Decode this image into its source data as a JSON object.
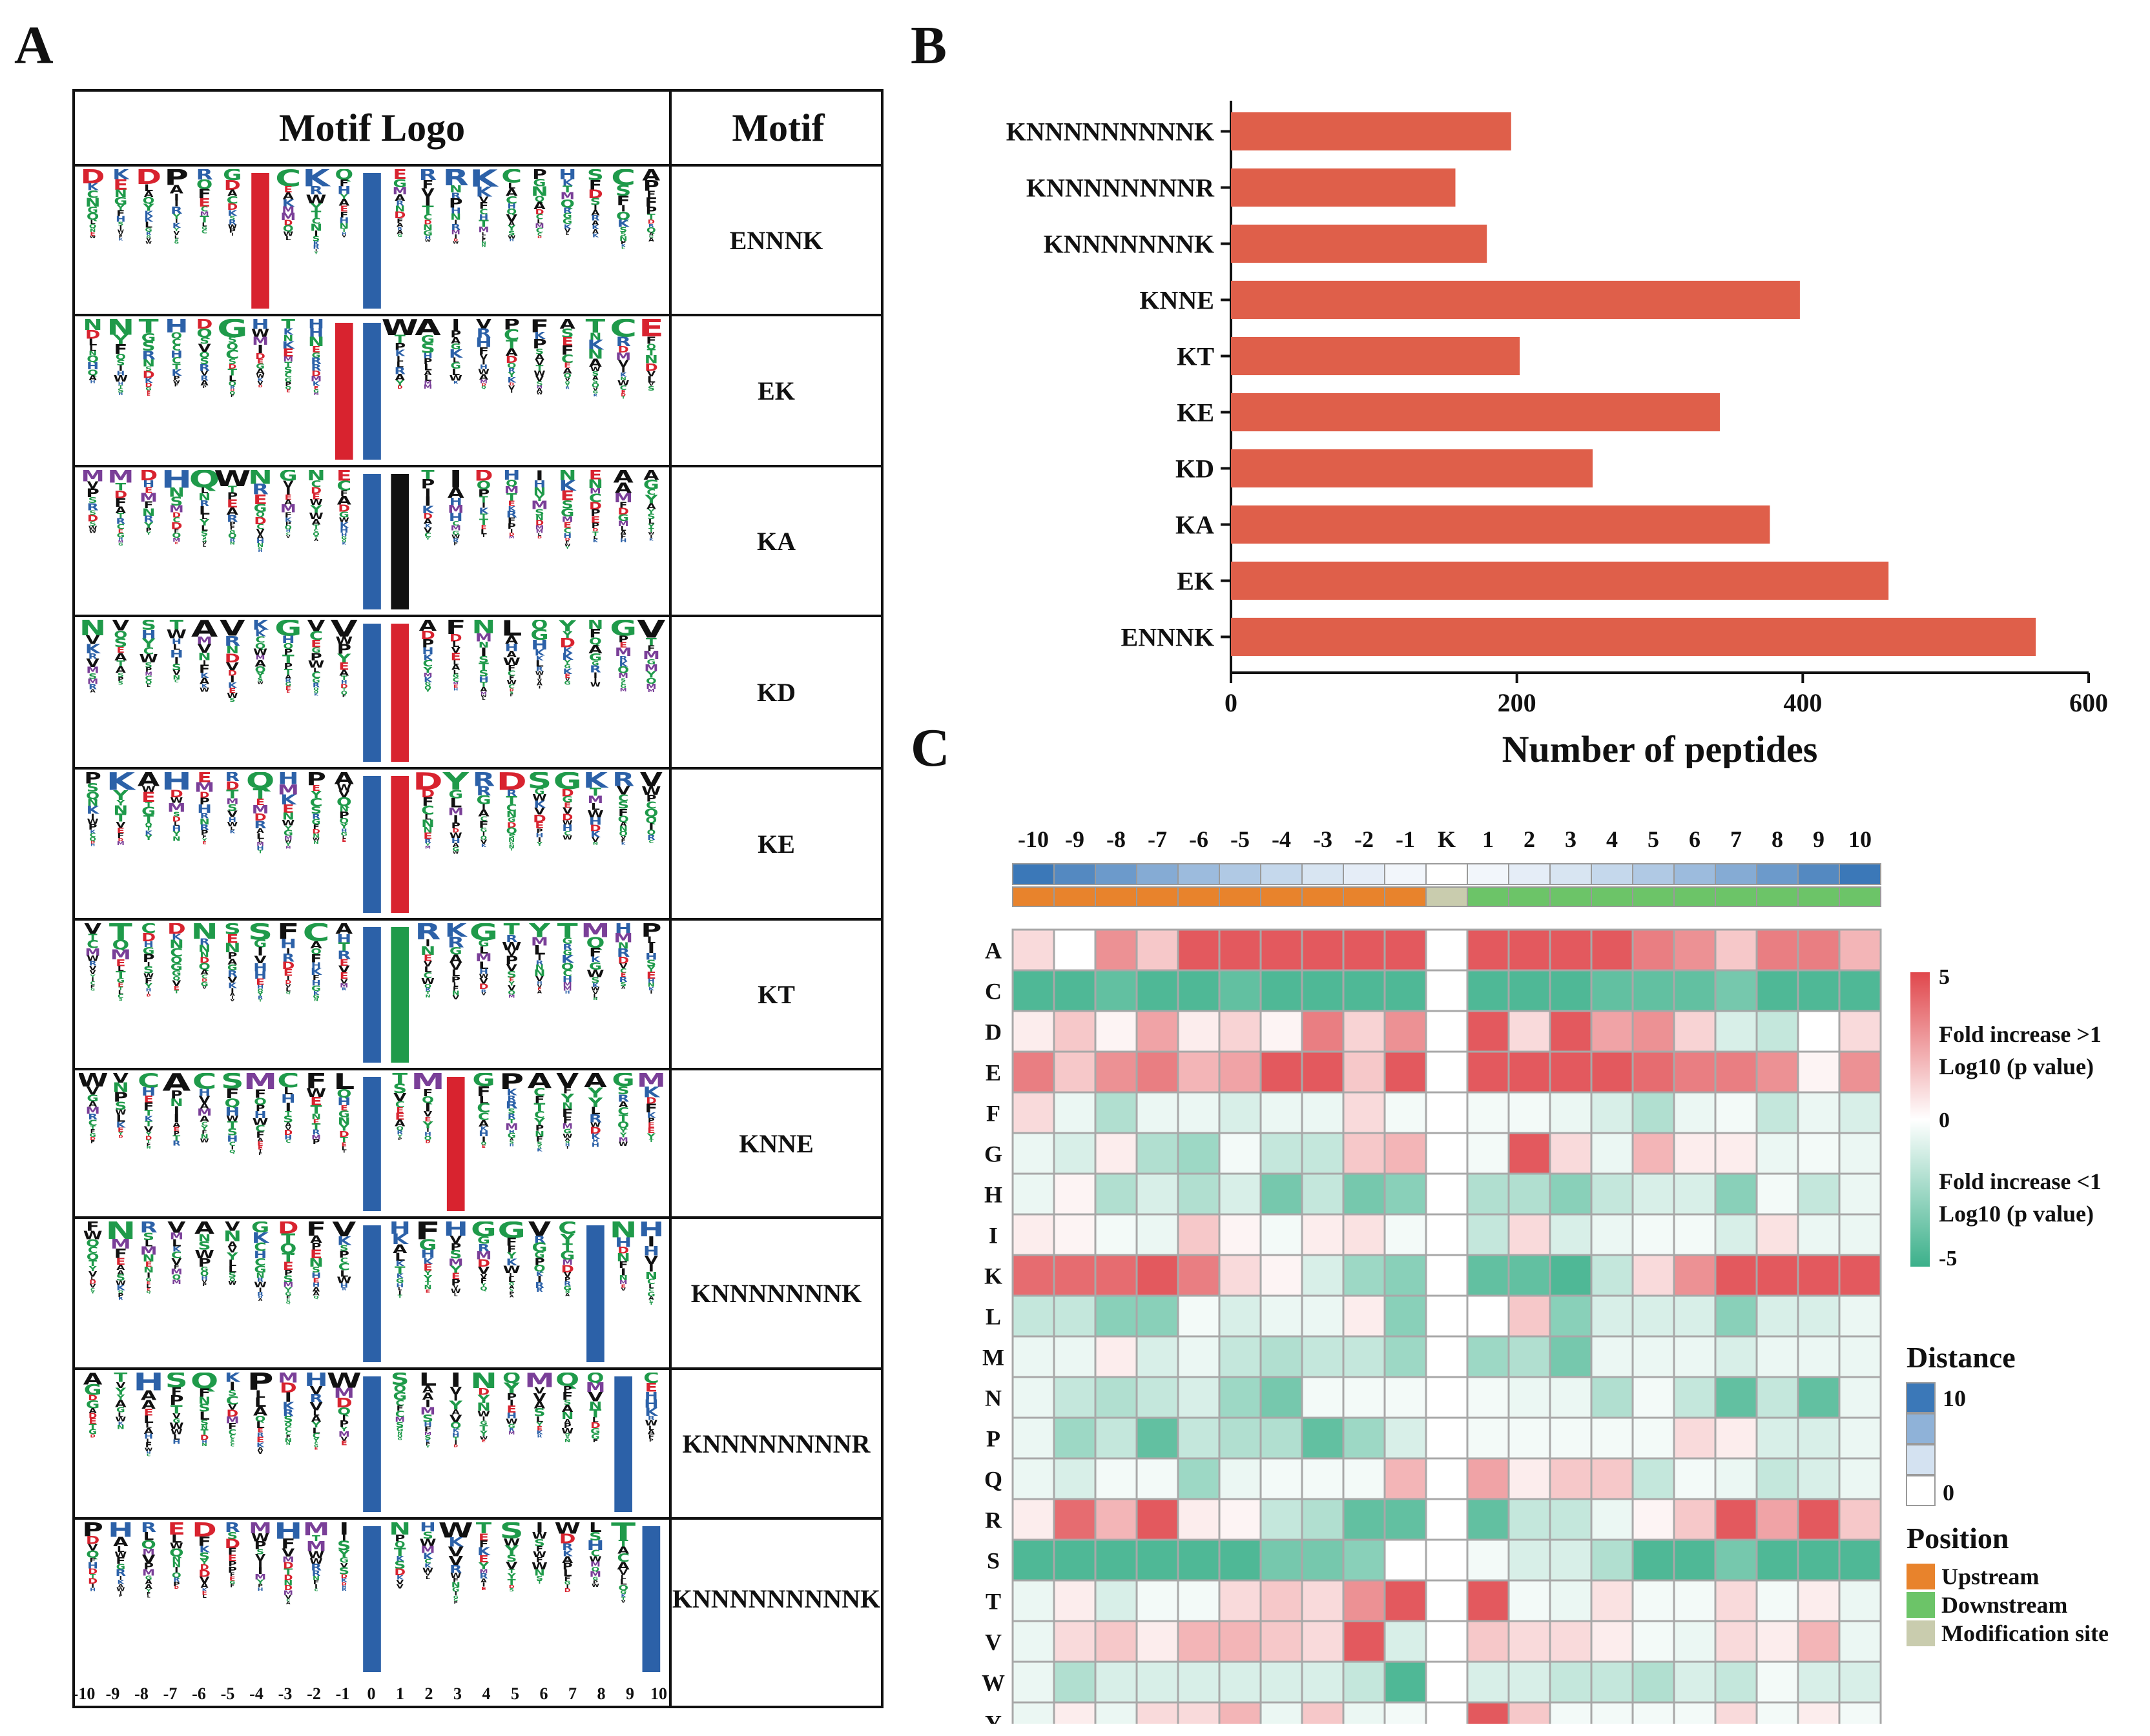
{
  "panels": {
    "a": "A",
    "b": "B",
    "c": "C"
  },
  "panel_a": {
    "logo_header": "Motif Logo",
    "motif_header": "Motif",
    "motifs": [
      {
        "motif": "ENNNK",
        "pattern": "E...K",
        "center_letters": [
          {
            "pos": 6,
            "letter": "E",
            "color": "#d8232f"
          },
          {
            "pos": 10,
            "letter": "K",
            "color": "#2c61a8"
          }
        ]
      },
      {
        "motif": "EK",
        "pattern": "EK",
        "center_letters": [
          {
            "pos": 9,
            "letter": "E",
            "color": "#d8232f"
          },
          {
            "pos": 10,
            "letter": "K",
            "color": "#2c61a8"
          }
        ]
      },
      {
        "motif": "KA",
        "pattern": "KA",
        "center_letters": [
          {
            "pos": 10,
            "letter": "K",
            "color": "#2c61a8"
          },
          {
            "pos": 11,
            "letter": "A",
            "color": "#111111"
          }
        ]
      },
      {
        "motif": "KD",
        "pattern": "KD",
        "center_letters": [
          {
            "pos": 10,
            "letter": "K",
            "color": "#2c61a8"
          },
          {
            "pos": 11,
            "letter": "D",
            "color": "#d8232f"
          }
        ]
      },
      {
        "motif": "KE",
        "pattern": "KE",
        "center_letters": [
          {
            "pos": 10,
            "letter": "K",
            "color": "#2c61a8"
          },
          {
            "pos": 11,
            "letter": "E",
            "color": "#d8232f"
          }
        ]
      },
      {
        "motif": "KT",
        "pattern": "KT",
        "center_letters": [
          {
            "pos": 10,
            "letter": "K",
            "color": "#2c61a8"
          },
          {
            "pos": 11,
            "letter": "T",
            "color": "#1f9a4a"
          }
        ]
      },
      {
        "motif": "KNNE",
        "pattern": "K..E",
        "center_letters": [
          {
            "pos": 10,
            "letter": "K",
            "color": "#2c61a8"
          },
          {
            "pos": 13,
            "letter": "E",
            "color": "#d8232f"
          }
        ]
      },
      {
        "motif": "KNNNNNNNK",
        "pattern": "K.......K",
        "center_letters": [
          {
            "pos": 10,
            "letter": "K",
            "color": "#2c61a8"
          },
          {
            "pos": 18,
            "letter": "K",
            "color": "#2c61a8"
          }
        ]
      },
      {
        "motif": "KNNNNNNNNR",
        "pattern": "K........R",
        "center_letters": [
          {
            "pos": 10,
            "letter": "K",
            "color": "#2c61a8"
          },
          {
            "pos": 19,
            "letter": "R",
            "color": "#2c61a8"
          }
        ]
      },
      {
        "motif": "KNNNNNNNNNK",
        "pattern": "K.........K",
        "center_letters": [
          {
            "pos": 10,
            "letter": "K",
            "color": "#2c61a8"
          },
          {
            "pos": 20,
            "letter": "K",
            "color": "#2c61a8"
          }
        ]
      }
    ],
    "position_ticks": [
      "-10",
      "-9",
      "-8",
      "-7",
      "-6",
      "-5",
      "-4",
      "-3",
      "-2",
      "-1",
      "0",
      "1",
      "2",
      "3",
      "4",
      "5",
      "6",
      "7",
      "8",
      "9",
      "10"
    ]
  },
  "chart_data": [
    {
      "type": "bar",
      "orientation": "horizontal",
      "categories": [
        "KNNNNNNNNNK",
        "KNNNNNNNNR",
        "KNNNNNNNK",
        "KNNE",
        "KT",
        "KE",
        "KD",
        "KA",
        "EK",
        "ENNNK"
      ],
      "values": [
        196,
        157,
        179,
        398,
        202,
        342,
        253,
        377,
        460,
        563
      ],
      "xlabel": "Number of peptides",
      "xlim": [
        0,
        600
      ],
      "xticks": [
        "0",
        "200",
        "400",
        "600"
      ],
      "bar_color": "#df5f4a"
    },
    {
      "type": "heatmap",
      "columns": [
        "-10",
        "-9",
        "-8",
        "-7",
        "-6",
        "-5",
        "-4",
        "-3",
        "-2",
        "-1",
        "K",
        "1",
        "2",
        "3",
        "4",
        "5",
        "6",
        "7",
        "8",
        "9",
        "10"
      ],
      "rows": [
        "A",
        "C",
        "D",
        "E",
        "F",
        "G",
        "H",
        "I",
        "K",
        "L",
        "M",
        "N",
        "P",
        "Q",
        "R",
        "S",
        "T",
        "V",
        "W",
        "Y"
      ],
      "values": [
        [
          1,
          0,
          3,
          1.5,
          4.5,
          4.5,
          4.5,
          4.5,
          4.5,
          4.5,
          0,
          4.5,
          4.5,
          4.5,
          4.5,
          3.5,
          3,
          1.5,
          3.5,
          3.5,
          2
        ],
        [
          -4.5,
          -4.5,
          -4,
          -4.5,
          -4.5,
          -4,
          -4.5,
          -4.5,
          -4.5,
          -4.5,
          0,
          -4.5,
          -4.5,
          -4.5,
          -4,
          -4,
          -4,
          -3.5,
          -4.5,
          -4.5,
          -4.5
        ],
        [
          0.5,
          1.5,
          0.3,
          2.5,
          0.5,
          1.2,
          0.3,
          3.5,
          1.2,
          3,
          0,
          4.5,
          1,
          4.5,
          2.5,
          3,
          1.2,
          -1,
          -1.5,
          0,
          1
        ],
        [
          3.5,
          1.5,
          3,
          3.5,
          2,
          2.5,
          4.5,
          4.5,
          1.5,
          4.5,
          0,
          4.5,
          4.5,
          4.5,
          4.5,
          4,
          3.5,
          3.5,
          3,
          0.3,
          3
        ],
        [
          1,
          -0.5,
          -2,
          -0.5,
          -0.5,
          -1,
          -0.5,
          -0.5,
          1,
          -0.3,
          0,
          -0.3,
          -0.3,
          -0.5,
          -1,
          -2,
          -0.5,
          -0.3,
          -1.5,
          -0.5,
          -1
        ],
        [
          -0.5,
          -1,
          0.5,
          -2,
          -2.5,
          -0.3,
          -1.5,
          -1.5,
          1.5,
          2,
          0,
          -0.3,
          4.5,
          1,
          -0.5,
          2,
          0.5,
          0.5,
          -0.5,
          -0.3,
          -0.5
        ],
        [
          -0.5,
          0.3,
          -2,
          -1,
          -2,
          -1,
          -3.5,
          -1.5,
          -3.5,
          -3,
          0,
          -2,
          -2,
          -3,
          -1.5,
          -1,
          -1,
          -3,
          -0.3,
          -1.5,
          -0.5
        ],
        [
          0.5,
          0.3,
          -0.3,
          -0.5,
          1.5,
          0.3,
          -0.3,
          0.5,
          0.8,
          -0.3,
          0,
          -1.5,
          1,
          -1,
          -0.5,
          -0.3,
          -0.3,
          -1,
          0.8,
          -0.5,
          -0.5
        ],
        [
          4,
          4,
          4,
          4.5,
          3.5,
          1,
          0.3,
          -1,
          -2.5,
          -3,
          0,
          -4,
          -4,
          -4.5,
          -1.5,
          1,
          3,
          4.5,
          4.5,
          4.5,
          4.5
        ],
        [
          -1.5,
          -1.5,
          -3,
          -3,
          -0.3,
          -1,
          -0.5,
          -0.5,
          0.5,
          -3,
          0,
          0,
          1.5,
          -3,
          -1,
          -1,
          -1,
          -3,
          -1,
          -1,
          -0.5
        ],
        [
          -0.5,
          -0.5,
          0.5,
          -1,
          -0.5,
          -1.5,
          -2,
          -1.5,
          -1.5,
          -2.5,
          0,
          -2.5,
          -2,
          -3.5,
          -0.5,
          -0.5,
          -0.5,
          -1,
          -0.5,
          -0.5,
          -0.5
        ],
        [
          -0.5,
          -1.5,
          -2,
          -1.5,
          -1,
          -2.5,
          -3.5,
          -0.3,
          -0.3,
          -0.3,
          0,
          -0.3,
          -0.5,
          -0.5,
          -2,
          -0.3,
          -1.5,
          -4,
          -1.5,
          -4,
          -0.5
        ],
        [
          -0.5,
          -2.5,
          -1.5,
          -4,
          -1.5,
          -2,
          -2,
          -4,
          -2.5,
          -1,
          0,
          -0.3,
          -0.3,
          -0.3,
          -0.3,
          -0.3,
          1,
          0.5,
          -1,
          -1,
          -0.5
        ],
        [
          -0.5,
          -1,
          -0.3,
          -0.3,
          -2.5,
          -0.5,
          -0.3,
          -0.3,
          -0.3,
          2,
          0,
          2.5,
          0.5,
          1.5,
          1.5,
          -1.5,
          -0.3,
          -0.5,
          -1.5,
          -1,
          -0.5
        ],
        [
          0.5,
          4,
          2,
          4.5,
          0.5,
          0.3,
          -1.5,
          -2,
          -4,
          -4,
          0,
          -4,
          -1.5,
          -1.5,
          -0.5,
          0.3,
          1.5,
          4.5,
          2.5,
          4.5,
          1.5
        ],
        [
          -4.5,
          -4.5,
          -4.5,
          -4.5,
          -4.5,
          -4.5,
          -3.5,
          -3.5,
          -3,
          0,
          0,
          -0.3,
          -1,
          -1,
          -2,
          -4.5,
          -4.5,
          -3.5,
          -4.5,
          -4.5,
          -4.5
        ],
        [
          -0.5,
          0.5,
          -1,
          -0.3,
          -0.3,
          1,
          1.5,
          1,
          3,
          4.5,
          0,
          4.5,
          -0.3,
          -0.5,
          0.8,
          -0.3,
          -0.3,
          1,
          -0.3,
          0.5,
          -0.5
        ],
        [
          -0.5,
          1,
          1.5,
          0.5,
          2,
          2,
          1.5,
          1,
          4.5,
          -1,
          0,
          1.5,
          1,
          1,
          0.5,
          -0.3,
          -0.5,
          1,
          0.5,
          2,
          -0.5
        ],
        [
          -0.5,
          -2,
          -1,
          -1,
          -1,
          -1,
          -1,
          -1,
          -1.5,
          -4.5,
          0,
          -1,
          -1,
          -1.5,
          -1.5,
          -2,
          -1,
          -1.5,
          -0.3,
          -1,
          -1
        ],
        [
          -0.5,
          0.5,
          -0.5,
          1,
          1,
          2,
          -0.5,
          1.5,
          -0.5,
          -0.3,
          0,
          4.5,
          1.5,
          -0.3,
          -0.3,
          -0.3,
          -0.3,
          1,
          -0.3,
          0.5,
          -0.3
        ]
      ],
      "vmin": -5,
      "vmax": 5,
      "distance_annotation": [
        10,
        9,
        8,
        7,
        6,
        5,
        4,
        3,
        2,
        1,
        0,
        1,
        2,
        3,
        4,
        5,
        6,
        7,
        8,
        9,
        10
      ],
      "position_annotation": [
        "Upstream",
        "Upstream",
        "Upstream",
        "Upstream",
        "Upstream",
        "Upstream",
        "Upstream",
        "Upstream",
        "Upstream",
        "Upstream",
        "Modification site",
        "Downstream",
        "Downstream",
        "Downstream",
        "Downstream",
        "Downstream",
        "Downstream",
        "Downstream",
        "Downstream",
        "Downstream",
        "Downstream"
      ],
      "colorbar": {
        "ticks": [
          "5",
          "0",
          "-5"
        ],
        "label_high": [
          "Fold increase >1",
          "Log10 (p value)"
        ],
        "label_low": [
          "Fold increase <1",
          "Log10 (p value)"
        ],
        "colors": {
          "high": "#e0474c",
          "mid": "#ffffff",
          "low": "#3bb08a"
        }
      },
      "legend_distance": {
        "title": "Distance",
        "max_label": "10",
        "min_label": "0",
        "colors": [
          "#3b78b8",
          "#8fb2d8",
          "#d4e2f1",
          "#ffffff"
        ]
      },
      "legend_position": {
        "title": "Position",
        "items": [
          {
            "label": "Upstream",
            "color": "#e8832c"
          },
          {
            "label": "Downstream",
            "color": "#6cc468"
          },
          {
            "label": "Modification site",
            "color": "#c9ccae"
          }
        ]
      }
    }
  ]
}
